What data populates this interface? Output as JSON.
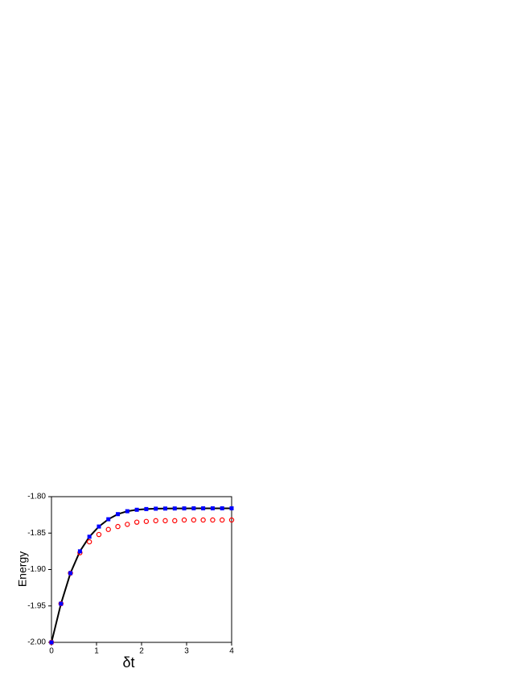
{
  "chart_data": {
    "type": "scatter",
    "xlabel": "δt",
    "ylabel": "Energy",
    "x": [
      0,
      0.211,
      0.421,
      0.632,
      0.842,
      1.053,
      1.263,
      1.474,
      1.684,
      1.895,
      2.105,
      2.316,
      2.526,
      2.737,
      2.947,
      3.158,
      3.368,
      3.579,
      3.789,
      4
    ],
    "series": [
      {
        "color": "#000000",
        "marker": "none",
        "line": true,
        "values": [
          -2.0,
          -1.947,
          -1.905,
          -1.875,
          -1.855,
          -1.841,
          -1.831,
          -1.824,
          -1.82,
          -1.818,
          -1.817,
          -1.8165,
          -1.8163,
          -1.8162,
          -1.8161,
          -1.816,
          -1.816,
          -1.816,
          -1.816,
          -1.816
        ]
      },
      {
        "color": "#ff0000",
        "marker": "circle",
        "line": false,
        "values": [
          -2.0,
          -1.947,
          -1.905,
          -1.877,
          -1.862,
          -1.852,
          -1.845,
          -1.841,
          -1.838,
          -1.835,
          -1.834,
          -1.833,
          -1.833,
          -1.833,
          -1.832,
          -1.832,
          -1.832,
          -1.832,
          -1.832,
          -1.832
        ]
      },
      {
        "color": "#0000ff",
        "marker": "square",
        "line": false,
        "values": [
          -2.0,
          -1.947,
          -1.905,
          -1.875,
          -1.855,
          -1.841,
          -1.831,
          -1.824,
          -1.82,
          -1.818,
          -1.817,
          -1.8165,
          -1.8163,
          -1.8162,
          -1.8161,
          -1.816,
          -1.816,
          -1.816,
          -1.816,
          -1.816
        ]
      }
    ],
    "xlim": [
      0,
      4
    ],
    "xticks": [
      0,
      1,
      2,
      3,
      4
    ],
    "ylim": [
      -2.0,
      -1.8
    ],
    "yticks": [
      {
        "value": -2.0,
        "label": "-2.00"
      },
      {
        "value": -1.95,
        "label": "-1.95"
      },
      {
        "value": -1.9,
        "label": "-1.90"
      },
      {
        "value": -1.85,
        "label": "-1.85"
      },
      {
        "value": -1.8,
        "label": "-1.80"
      }
    ],
    "grid": false
  }
}
